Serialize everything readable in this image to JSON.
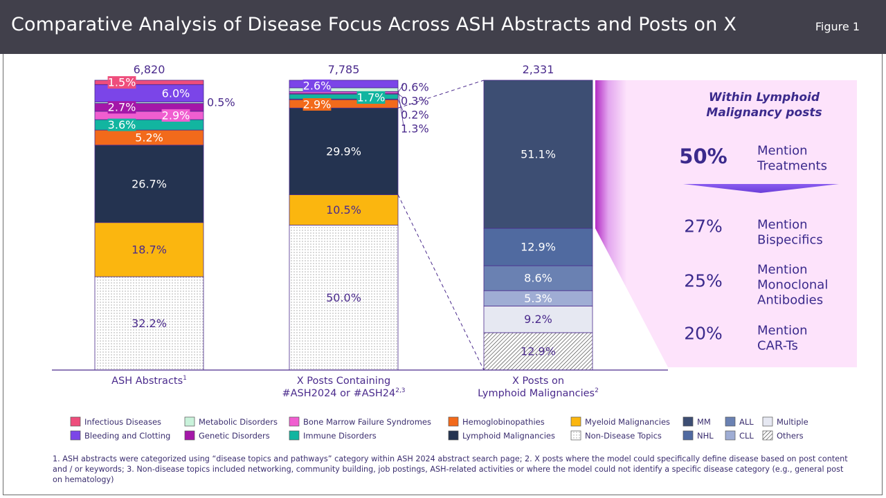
{
  "header": {
    "title": "Comparative Analysis of Disease Focus Across ASH Abstracts and Posts on X",
    "figure_label": "Figure 1"
  },
  "chart_data": {
    "type": "bar",
    "stacked": true,
    "percent_stacked": true,
    "bars": [
      {
        "label": "ASH Abstracts",
        "sup": "1",
        "total_label": "6,820",
        "segments": [
          {
            "category": "Non-Disease Topics",
            "value": 32.2,
            "label": "32.2%"
          },
          {
            "category": "Myeloid Malignancies",
            "value": 18.7,
            "label": "18.7%"
          },
          {
            "category": "Lymphoid Malignancies",
            "value": 26.7,
            "label": "26.7%"
          },
          {
            "category": "Hemoglobinopathies",
            "value": 5.2,
            "label": "5.2%"
          },
          {
            "category": "Immune Disorders",
            "value": 3.6,
            "label": "3.6%"
          },
          {
            "category": "Bone Marrow Failure Syndromes",
            "value": 2.9,
            "label": "2.9%"
          },
          {
            "category": "Genetic Disorders",
            "value": 2.7,
            "label": "2.7%"
          },
          {
            "category": "Metabolic Disorders",
            "value": 0.5,
            "label": "0.5%"
          },
          {
            "category": "Bleeding and Clotting",
            "value": 6.0,
            "label": "6.0%"
          },
          {
            "category": "Infectious Diseases",
            "value": 1.5,
            "label": "1.5%"
          }
        ]
      },
      {
        "label": "X Posts Containing\n#ASH2024 or #ASH24",
        "sup": "2,3",
        "total_label": "7,785",
        "segments": [
          {
            "category": "Non-Disease Topics",
            "value": 50.0,
            "label": "50.0%"
          },
          {
            "category": "Myeloid Malignancies",
            "value": 10.5,
            "label": "10.5%"
          },
          {
            "category": "Lymphoid Malignancies",
            "value": 29.9,
            "label": "29.9%"
          },
          {
            "category": "Hemoglobinopathies",
            "value": 2.9,
            "label": "2.9%"
          },
          {
            "category": "Genetic Disorders",
            "value": 0.2,
            "label": "0.2%"
          },
          {
            "category": "Immune Disorders",
            "value": 1.7,
            "label": "1.7%"
          },
          {
            "category": "Infectious Diseases",
            "value": 0.3,
            "label": "0.3%"
          },
          {
            "category": "Bone Marrow Failure Syndromes",
            "value": 0.6,
            "label": "0.6%"
          },
          {
            "category": "Metabolic Disorders",
            "value": 1.3,
            "label": "1.3%"
          },
          {
            "category": "Bleeding and Clotting",
            "value": 2.6,
            "label": "2.6%"
          }
        ]
      },
      {
        "label": "X Posts on\nLymphoid Malignancies",
        "sup": "2",
        "total_label": "2,331",
        "segments": [
          {
            "category": "Others",
            "value": 12.9,
            "label": "12.9%"
          },
          {
            "category": "Multiple",
            "value": 9.2,
            "label": "9.2%"
          },
          {
            "category": "CLL",
            "value": 5.3,
            "label": "5.3%"
          },
          {
            "category": "ALL",
            "value": 8.6,
            "label": "8.6%"
          },
          {
            "category": "NHL",
            "value": 12.9,
            "label": "12.9%"
          },
          {
            "category": "MM",
            "value": 51.1,
            "label": "51.1%"
          }
        ]
      }
    ],
    "legend": [
      {
        "name": "Infectious Diseases",
        "color": "#ee4d7c"
      },
      {
        "name": "Metabolic Disorders",
        "color": "#c9f2db"
      },
      {
        "name": "Bone Marrow Failure Syndromes",
        "color": "#f05ed0"
      },
      {
        "name": "Hemoglobinopathies",
        "color": "#f26a1b"
      },
      {
        "name": "Myeloid Malignancies",
        "color": "#fbb60f"
      },
      {
        "name": "MM",
        "color": "#3d4e73"
      },
      {
        "name": "ALL",
        "color": "#6a81b2"
      },
      {
        "name": "Multiple",
        "color": "#e6e8f2"
      },
      {
        "name": "Bleeding and Clotting",
        "color": "#7b45e8"
      },
      {
        "name": "Genetic Disorders",
        "color": "#a417a8"
      },
      {
        "name": "Immune Disorders",
        "color": "#12b5a0"
      },
      {
        "name": "Lymphoid Malignancies",
        "color": "#243350"
      },
      {
        "name": "Non-Disease Topics",
        "color": "#ffffff",
        "pattern": "dots"
      },
      {
        "name": "NHL",
        "color": "#506aa0"
      },
      {
        "name": "CLL",
        "color": "#9fadd4"
      },
      {
        "name": "Others",
        "color": "#ffffff",
        "pattern": "hatch"
      }
    ],
    "callout": {
      "heading": "Within Lymphoid\nMalignancy posts",
      "items": [
        {
          "value": "50%",
          "text": "Mention\nTreatments",
          "bold": true
        },
        {
          "value": "27%",
          "text": "Mention\nBispecifics"
        },
        {
          "value": "25%",
          "text": "Mention\nMonoclonal\nAntibodies"
        },
        {
          "value": "20%",
          "text": "Mention\nCAR-Ts"
        }
      ]
    }
  },
  "footnote": "1. ASH abstracts were categorized using “disease topics and pathways” category within ASH 2024 abstract search page; 2. X posts where the model could specifically define disease based on post content and / or keywords; 3. Non-disease topics included networking, community building, job postings, ASH-related activities or where the model could not identify a specific disease category (e.g., general post on hematology)"
}
